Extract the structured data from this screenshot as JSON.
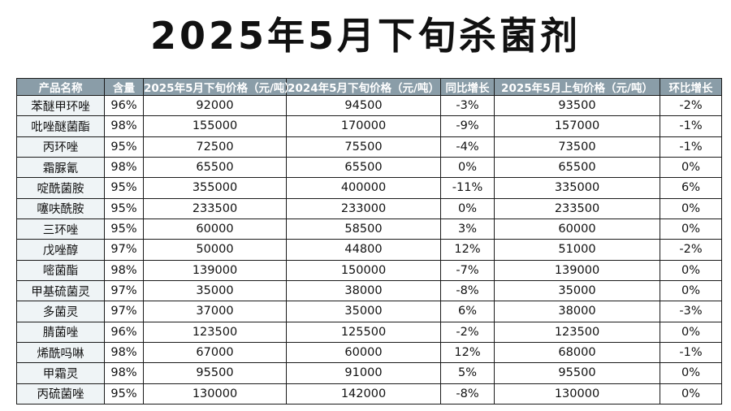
{
  "title": "2025年5月下旬杀菌剂",
  "table": {
    "headers": [
      "产品名称",
      "含量",
      "2025年5月下旬价格（元/吨）",
      "2024年5月下旬价格（元/吨）",
      "同比增长",
      "2025年5月上旬价格（元/吨）",
      "环比增长"
    ],
    "rows": [
      [
        "苯醚甲环唑",
        "96%",
        "92000",
        "94500",
        "-3%",
        "93500",
        "-2%"
      ],
      [
        "吡唑醚菌酯",
        "98%",
        "155000",
        "170000",
        "-9%",
        "157000",
        "-1%"
      ],
      [
        "丙环唑",
        "95%",
        "72500",
        "75500",
        "-4%",
        "73500",
        "-1%"
      ],
      [
        "霜脲氰",
        "98%",
        "65500",
        "65500",
        "0%",
        "65500",
        "0%"
      ],
      [
        "啶酰菌胺",
        "95%",
        "355000",
        "400000",
        "-11%",
        "335000",
        "6%"
      ],
      [
        "噻呋酰胺",
        "95%",
        "233500",
        "233000",
        "0%",
        "233500",
        "0%"
      ],
      [
        "三环唑",
        "95%",
        "60000",
        "58500",
        "3%",
        "60000",
        "0%"
      ],
      [
        "戊唑醇",
        "97%",
        "50000",
        "44800",
        "12%",
        "51000",
        "-2%"
      ],
      [
        "嘧菌酯",
        "98%",
        "139000",
        "150000",
        "-7%",
        "139000",
        "0%"
      ],
      [
        "甲基硫菌灵",
        "97%",
        "35000",
        "38000",
        "-8%",
        "35000",
        "0%"
      ],
      [
        "多菌灵",
        "97%",
        "37000",
        "35000",
        "6%",
        "38000",
        "-3%"
      ],
      [
        "腈菌唑",
        "96%",
        "123500",
        "125500",
        "-2%",
        "123500",
        "0%"
      ],
      [
        "烯酰吗啉",
        "98%",
        "67000",
        "60000",
        "12%",
        "68000",
        "-1%"
      ],
      [
        "甲霜灵",
        "98%",
        "95500",
        "91000",
        "5%",
        "95500",
        "0%"
      ],
      [
        "丙硫菌唑",
        "95%",
        "130000",
        "142000",
        "-8%",
        "130000",
        "0%"
      ]
    ]
  }
}
